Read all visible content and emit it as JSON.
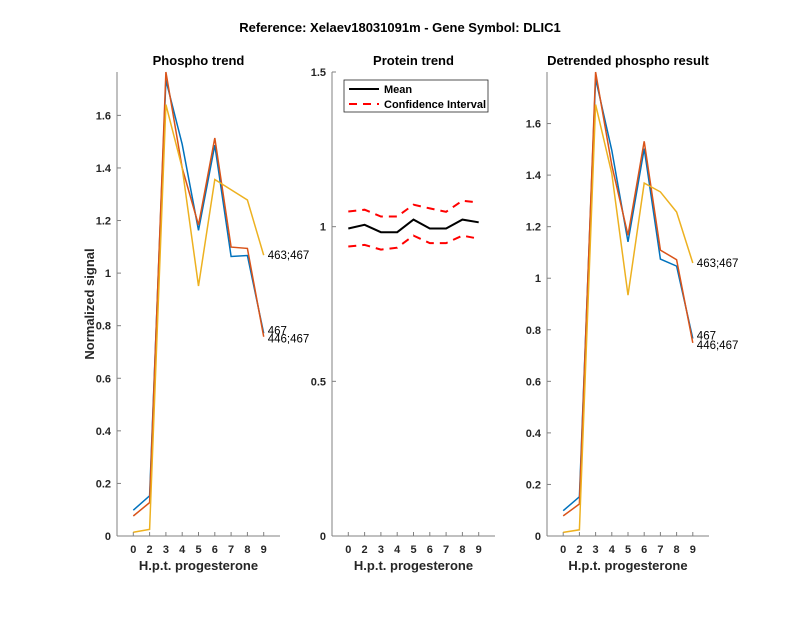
{
  "figure": {
    "suptitle": "Reference:  Xelaev18031091m - Gene Symbol:  DLIC1"
  },
  "chart_data": [
    {
      "type": "line",
      "title": "Phospho trend",
      "xlabel": "H.p.t. progesterone",
      "ylabel": "Normalized signal",
      "categories": [
        "0",
        "2",
        "3",
        "4",
        "5",
        "6",
        "7",
        "8",
        "9"
      ],
      "xlim_index": [
        0,
        10
      ],
      "ylim": [
        0,
        1.765
      ],
      "yticks": [
        0,
        0.2,
        0.4,
        0.6,
        0.8,
        1,
        1.2,
        1.4,
        1.6
      ],
      "ytick_labels": [
        "0",
        "0.2",
        "0.4",
        "0.6",
        "0.8",
        "1",
        "1.2",
        "1.4",
        "1.6"
      ],
      "grid": false,
      "series": [
        {
          "name": "467",
          "color": "#0072BD",
          "values": [
            0.098,
            0.153,
            1.734,
            1.49,
            1.163,
            1.487,
            1.063,
            1.067,
            0.771
          ],
          "end_label": "467"
        },
        {
          "name": "446;467",
          "color": "#D95319",
          "values": [
            0.076,
            0.127,
            1.765,
            1.4,
            1.183,
            1.514,
            1.099,
            1.094,
            0.758
          ],
          "end_label": "446;467"
        },
        {
          "name": "463;467",
          "color": "#EDB120",
          "values": [
            0.014,
            0.025,
            1.641,
            1.4,
            0.951,
            1.356,
            1.317,
            1.278,
            1.068
          ],
          "end_label": "463;467"
        }
      ]
    },
    {
      "type": "line",
      "title": "Protein trend",
      "xlabel": "H.p.t. progesterone",
      "ylabel": "",
      "categories": [
        "0",
        "2",
        "3",
        "4",
        "5",
        "6",
        "7",
        "8",
        "9"
      ],
      "xlim_index": [
        0,
        10
      ],
      "ylim": [
        0,
        1.5
      ],
      "yticks": [
        0,
        0.5,
        1,
        1.5
      ],
      "ytick_labels": [
        "0",
        "0.5",
        "1",
        "1.5"
      ],
      "grid": false,
      "legend": {
        "placement": "top-left",
        "entries": [
          "Mean",
          "Confidence Interval"
        ]
      },
      "series": [
        {
          "name": "Mean",
          "color": "#000000",
          "style": "solid",
          "values": [
            0.994,
            1.006,
            0.982,
            0.982,
            1.023,
            0.994,
            0.994,
            1.023,
            1.014
          ]
        },
        {
          "name": "Confidence Interval (upper)",
          "color": "#FF0000",
          "style": "dashed",
          "values": [
            1.049,
            1.055,
            1.033,
            1.033,
            1.071,
            1.059,
            1.048,
            1.084,
            1.078
          ]
        },
        {
          "name": "Confidence Interval (lower)",
          "color": "#FF0000",
          "style": "dashed",
          "values": [
            0.936,
            0.941,
            0.926,
            0.932,
            0.971,
            0.947,
            0.947,
            0.971,
            0.961
          ]
        }
      ]
    },
    {
      "type": "line",
      "title": "Detrended phospho result",
      "xlabel": "H.p.t. progesterone",
      "ylabel": "",
      "categories": [
        "0",
        "2",
        "3",
        "4",
        "5",
        "6",
        "7",
        "8",
        "9"
      ],
      "xlim_index": [
        0,
        10
      ],
      "ylim": [
        0,
        1.8
      ],
      "yticks": [
        0,
        0.2,
        0.4,
        0.6,
        0.8,
        1,
        1.2,
        1.4,
        1.6
      ],
      "ytick_labels": [
        "0",
        "0.2",
        "0.4",
        "0.6",
        "0.8",
        "1",
        "1.2",
        "1.4",
        "1.6"
      ],
      "grid": false,
      "series": [
        {
          "name": "467",
          "color": "#0072BD",
          "values": [
            0.098,
            0.152,
            1.774,
            1.496,
            1.141,
            1.503,
            1.074,
            1.047,
            0.766
          ],
          "end_label": "467"
        },
        {
          "name": "446;467",
          "color": "#D95319",
          "values": [
            0.078,
            0.124,
            1.8,
            1.438,
            1.167,
            1.531,
            1.109,
            1.072,
            0.749
          ],
          "end_label": "446;467"
        },
        {
          "name": "463;467",
          "color": "#EDB120",
          "values": [
            0.014,
            0.024,
            1.674,
            1.406,
            0.934,
            1.369,
            1.335,
            1.257,
            1.059
          ],
          "end_label": "463;467"
        }
      ]
    }
  ]
}
